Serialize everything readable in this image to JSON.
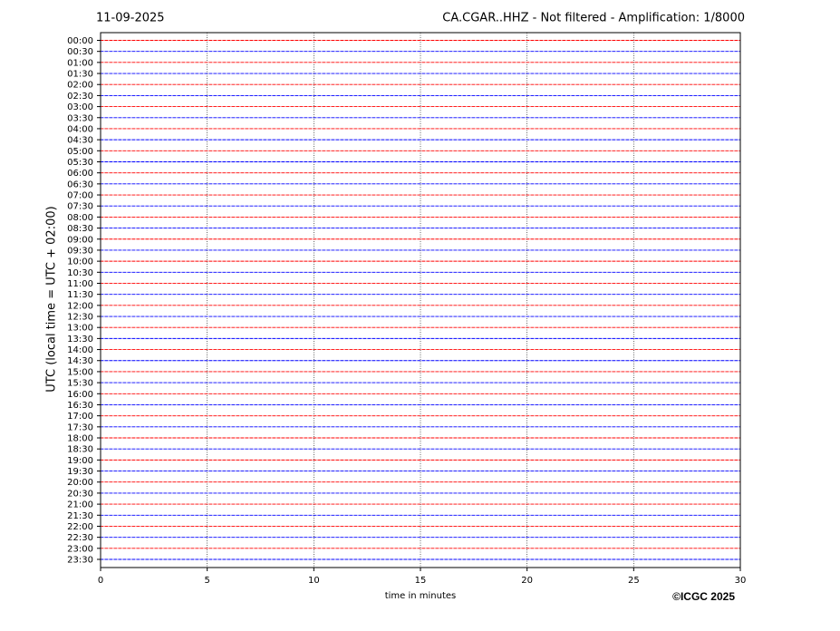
{
  "chart_data": {
    "type": "helicorder",
    "title_left": "11-09-2025",
    "title_right": "CA.CGAR..HHZ - Not filtered - Amplification: 1/8000",
    "x_label": "time in minutes",
    "y_label": "UTC (local time = UTC + 02:00)",
    "credit": "©ICGC 2025",
    "categories": [
      "00:00",
      "00:30",
      "01:00",
      "01:30",
      "02:00",
      "02:30",
      "03:00",
      "03:30",
      "04:00",
      "04:30",
      "05:00",
      "05:30",
      "06:00",
      "06:30",
      "07:00",
      "07:30",
      "08:00",
      "08:30",
      "09:00",
      "09:30",
      "10:00",
      "10:30",
      "11:00",
      "11:30",
      "12:00",
      "12:30",
      "13:00",
      "13:30",
      "14:00",
      "14:30",
      "15:00",
      "15:30",
      "16:00",
      "16:30",
      "17:00",
      "17:30",
      "18:00",
      "18:30",
      "19:00",
      "19:30",
      "20:00",
      "20:30",
      "21:00",
      "21:30",
      "22:00",
      "22:30",
      "23:00",
      "23:30"
    ],
    "colors": [
      "#ff0000",
      "#0000ff"
    ],
    "xlim": [
      0,
      30
    ],
    "xticks": [
      0,
      5,
      10,
      15,
      20,
      25,
      30
    ],
    "grid": true
  }
}
